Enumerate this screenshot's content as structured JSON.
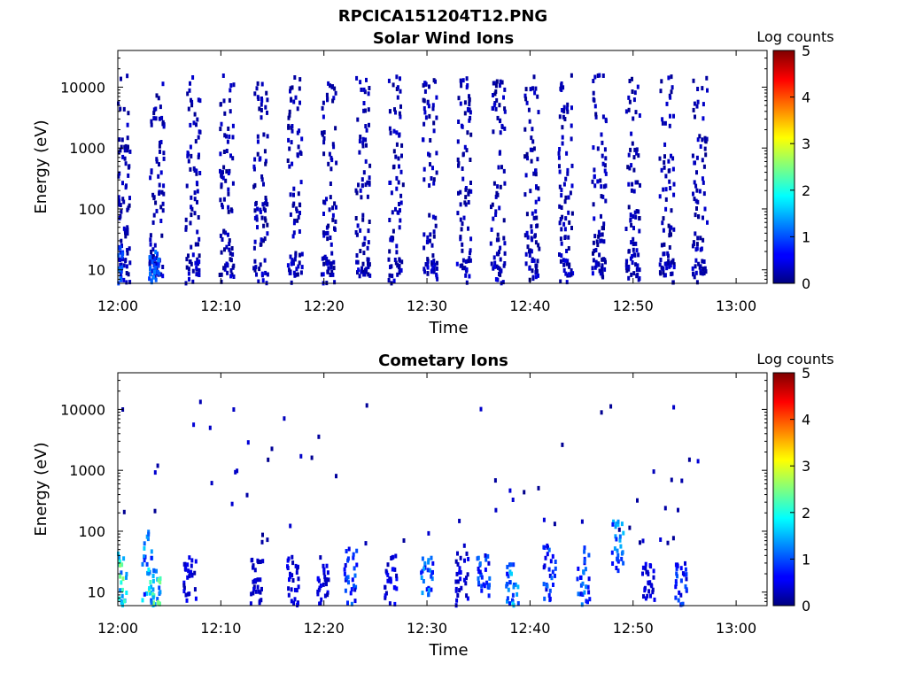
{
  "figure_title": "RPCICA151204T12.PNG",
  "chart_data": [
    {
      "type": "heatmap",
      "title": "Solar Wind Ions",
      "xlabel": "Time",
      "ylabel": "Energy (eV)",
      "y_scale": "log",
      "xlim": [
        "12:00",
        "13:03"
      ],
      "ylim": [
        6,
        40000
      ],
      "x_ticks": [
        "12:00",
        "12:10",
        "12:20",
        "12:30",
        "12:40",
        "12:50",
        "13:00"
      ],
      "y_ticks": [
        "10",
        "100",
        "1000",
        "10000"
      ],
      "colorbar": {
        "label": "Log counts",
        "ticks": [
          "0",
          "1",
          "2",
          "3",
          "4",
          "5"
        ],
        "range": [
          0,
          5
        ],
        "colormap": "jet"
      },
      "description_of_data": "Intermittent sweeps roughly every 3.2 minutes from 12:00 to 12:56; sparse single-count events (log counts ~0-0.5) spread from ~6 eV to ~30000 eV, denser at low energies; short columns of higher counts (~1) near 12:03-12:04 below 30 eV.",
      "sweep_times_min": [
        0.4,
        3.7,
        7.2,
        10.5,
        13.8,
        17.1,
        20.4,
        23.7,
        26.9,
        30.2,
        33.5,
        36.8,
        40.1,
        43.4,
        46.6,
        49.9,
        53.2,
        56.4
      ],
      "data_end_min": 56.8,
      "peaks": [
        {
          "time_min": 0.3,
          "energy_range_ev": [
            6,
            25
          ],
          "log_counts": 1.2
        },
        {
          "time_min": 3.3,
          "energy_range_ev": [
            6,
            20
          ],
          "log_counts": 1.4
        },
        {
          "time_min": 3.8,
          "energy_range_ev": [
            6,
            20
          ],
          "log_counts": 1.3
        }
      ]
    },
    {
      "type": "heatmap",
      "title": "Cometary Ions",
      "xlabel": "Time",
      "ylabel": "Energy (eV)",
      "y_scale": "log",
      "xlim": [
        "12:00",
        "13:03"
      ],
      "ylim": [
        6,
        40000
      ],
      "x_ticks": [
        "12:00",
        "12:10",
        "12:20",
        "12:30",
        "12:40",
        "12:50",
        "13:00"
      ],
      "y_ticks": [
        "10",
        "100",
        "1000",
        "10000"
      ],
      "colorbar": {
        "label": "Log counts",
        "ticks": [
          "0",
          "1",
          "2",
          "3",
          "4",
          "5"
        ],
        "range": [
          0,
          5
        ],
        "colormap": "jet"
      },
      "description_of_data": "Low-energy cometary ion signal (6-60 eV) in bursts; strongest near 12:00-12:04 (log counts up to ~2.7) with tails reaching ~500 eV; further bursts near 12:07, 12:13, 12:17, 12:20-12:23, 12:27, 12:30, 12:33, 12:35, 12:38, 12:42, 12:45, 12:48, 12:51, 12:55; scattered single events up to ~13000 eV.",
      "bursts": [
        {
          "time_min": 0.3,
          "energy_range_ev": [
            6,
            45
          ],
          "log_counts": 2.6
        },
        {
          "time_min": 2.9,
          "energy_range_ev": [
            6,
            120
          ],
          "log_counts": 1.8
        },
        {
          "time_min": 3.6,
          "energy_range_ev": [
            6,
            25
          ],
          "log_counts": 2.7
        },
        {
          "time_min": 7.0,
          "energy_range_ev": [
            6,
            40
          ],
          "log_counts": 0.6
        },
        {
          "time_min": 13.5,
          "energy_range_ev": [
            6,
            35
          ],
          "log_counts": 0.5
        },
        {
          "time_min": 17.0,
          "energy_range_ev": [
            6,
            40
          ],
          "log_counts": 0.6
        },
        {
          "time_min": 20.0,
          "energy_range_ev": [
            6,
            40
          ],
          "log_counts": 0.6
        },
        {
          "time_min": 22.6,
          "energy_range_ev": [
            6,
            60
          ],
          "log_counts": 1.2
        },
        {
          "time_min": 26.5,
          "energy_range_ev": [
            6,
            45
          ],
          "log_counts": 0.7
        },
        {
          "time_min": 30.0,
          "energy_range_ev": [
            8,
            40
          ],
          "log_counts": 1.5
        },
        {
          "time_min": 33.4,
          "energy_range_ev": [
            6,
            60
          ],
          "log_counts": 0.6
        },
        {
          "time_min": 35.5,
          "energy_range_ev": [
            8,
            40
          ],
          "log_counts": 1.2
        },
        {
          "time_min": 38.3,
          "energy_range_ev": [
            6,
            30
          ],
          "log_counts": 1.7
        },
        {
          "time_min": 41.9,
          "energy_range_ev": [
            6,
            60
          ],
          "log_counts": 1.2
        },
        {
          "time_min": 45.2,
          "energy_range_ev": [
            6,
            60
          ],
          "log_counts": 1.4
        },
        {
          "time_min": 48.5,
          "energy_range_ev": [
            20,
            150
          ],
          "log_counts": 1.6
        },
        {
          "time_min": 51.5,
          "energy_range_ev": [
            6,
            30
          ],
          "log_counts": 0.6
        },
        {
          "time_min": 54.7,
          "energy_range_ev": [
            6,
            30
          ],
          "log_counts": 1.1
        }
      ]
    }
  ]
}
